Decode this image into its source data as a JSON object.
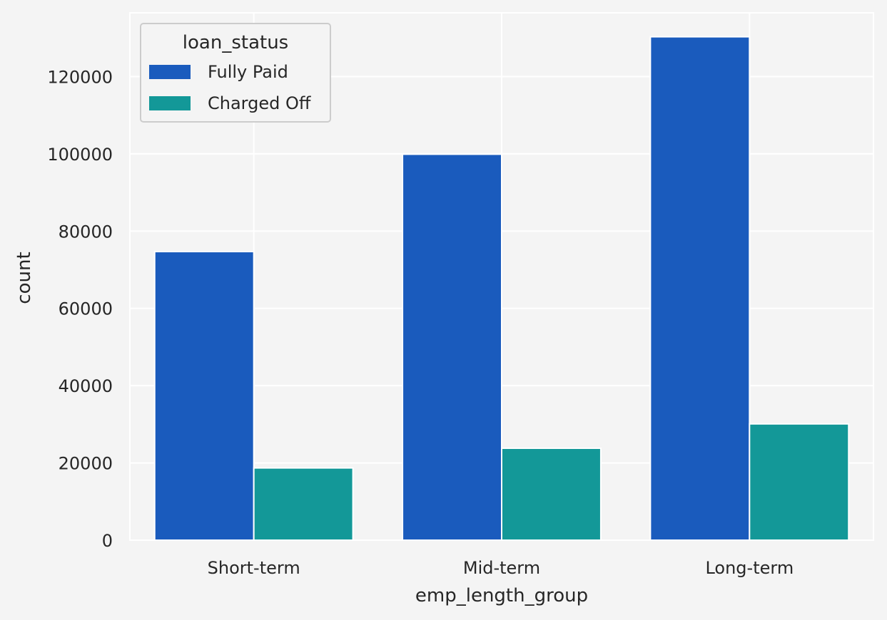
{
  "chart_data": {
    "type": "bar",
    "title": "",
    "xlabel": "emp_length_group",
    "ylabel": "count",
    "categories": [
      "Short-term",
      "Mid-term",
      "Long-term"
    ],
    "series": [
      {
        "name": "Fully Paid",
        "color": "#1a5bbd",
        "values": [
          74700,
          99900,
          130300
        ]
      },
      {
        "name": "Charged Off",
        "color": "#139898",
        "values": [
          18700,
          23800,
          30100
        ]
      }
    ],
    "ylim": [
      0,
      136500
    ],
    "yticks": [
      0,
      20000,
      40000,
      60000,
      80000,
      100000,
      120000
    ],
    "ytick_labels": [
      "0",
      "20000",
      "40000",
      "60000",
      "80000",
      "100000",
      "120000"
    ],
    "legend": {
      "title": "loan_status",
      "position": "top-left"
    },
    "grid": true,
    "background": "#f4f4f4",
    "grid_color": "#ffffff"
  }
}
